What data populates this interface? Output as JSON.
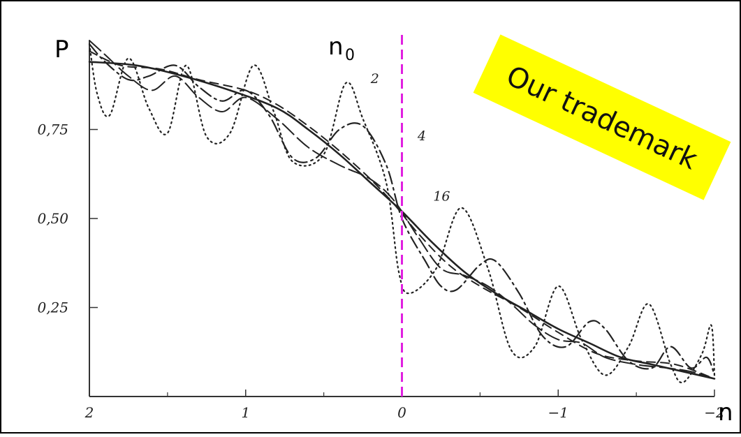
{
  "chart_data": {
    "type": "line",
    "ylabel": "P",
    "xlabel": "n",
    "xlim": [
      2,
      -2
    ],
    "ylim": [
      0,
      1
    ],
    "x_ticks": [
      {
        "value": 2,
        "label": "2"
      },
      {
        "value": 1,
        "label": "1"
      },
      {
        "value": 0,
        "label": "0"
      },
      {
        "value": -1,
        "label": "−1"
      },
      {
        "value": -2,
        "label": "−2"
      }
    ],
    "y_ticks": [
      {
        "value": 0.25,
        "label": "0,25"
      },
      {
        "value": 0.5,
        "label": "0,50"
      },
      {
        "value": 0.75,
        "label": "0,75"
      }
    ],
    "grid": false,
    "series": [
      {
        "name": "2",
        "style": "dotted",
        "points": [
          [
            2.0,
            0.99
          ],
          [
            1.95,
            0.85
          ],
          [
            1.87,
            0.79
          ],
          [
            1.75,
            0.95
          ],
          [
            1.62,
            0.81
          ],
          [
            1.5,
            0.74
          ],
          [
            1.38,
            0.93
          ],
          [
            1.25,
            0.73
          ],
          [
            1.1,
            0.74
          ],
          [
            0.95,
            0.93
          ],
          [
            0.82,
            0.8
          ],
          [
            0.7,
            0.66
          ],
          [
            0.5,
            0.68
          ],
          [
            0.36,
            0.88
          ],
          [
            0.25,
            0.78
          ],
          [
            0.1,
            0.6
          ],
          [
            0.02,
            0.35
          ],
          [
            -0.05,
            0.29
          ],
          [
            -0.22,
            0.36
          ],
          [
            -0.38,
            0.53
          ],
          [
            -0.55,
            0.36
          ],
          [
            -0.7,
            0.13
          ],
          [
            -0.85,
            0.14
          ],
          [
            -1.0,
            0.31
          ],
          [
            -1.15,
            0.16
          ],
          [
            -1.3,
            0.06
          ],
          [
            -1.45,
            0.14
          ],
          [
            -1.58,
            0.26
          ],
          [
            -1.72,
            0.09
          ],
          [
            -1.8,
            0.04
          ],
          [
            -1.92,
            0.12
          ],
          [
            -1.98,
            0.2
          ],
          [
            -2.0,
            0.06
          ]
        ]
      },
      {
        "name": "4",
        "style": "dash-dot",
        "points": [
          [
            2.0,
            0.99
          ],
          [
            1.9,
            0.94
          ],
          [
            1.75,
            0.89
          ],
          [
            1.62,
            0.9
          ],
          [
            1.45,
            0.93
          ],
          [
            1.3,
            0.87
          ],
          [
            1.15,
            0.83
          ],
          [
            1.0,
            0.86
          ],
          [
            0.85,
            0.79
          ],
          [
            0.7,
            0.67
          ],
          [
            0.55,
            0.67
          ],
          [
            0.4,
            0.75
          ],
          [
            0.25,
            0.76
          ],
          [
            0.1,
            0.65
          ],
          [
            0.0,
            0.5
          ],
          [
            -0.15,
            0.38
          ],
          [
            -0.25,
            0.31
          ],
          [
            -0.35,
            0.3
          ],
          [
            -0.5,
            0.37
          ],
          [
            -0.6,
            0.38
          ],
          [
            -0.75,
            0.29
          ],
          [
            -0.9,
            0.17
          ],
          [
            -1.05,
            0.14
          ],
          [
            -1.2,
            0.21
          ],
          [
            -1.3,
            0.19
          ],
          [
            -1.45,
            0.1
          ],
          [
            -1.6,
            0.08
          ],
          [
            -1.72,
            0.14
          ],
          [
            -1.85,
            0.08
          ],
          [
            -1.95,
            0.11
          ],
          [
            -2.0,
            0.06
          ]
        ]
      },
      {
        "name": "16",
        "style": "dashed",
        "points": [
          [
            2.0,
            0.97
          ],
          [
            1.8,
            0.93
          ],
          [
            1.55,
            0.92
          ],
          [
            1.3,
            0.89
          ],
          [
            1.0,
            0.86
          ],
          [
            0.8,
            0.82
          ],
          [
            0.6,
            0.76
          ],
          [
            0.4,
            0.69
          ],
          [
            0.2,
            0.61
          ],
          [
            0.05,
            0.54
          ],
          [
            -0.1,
            0.46
          ],
          [
            -0.3,
            0.37
          ],
          [
            -0.5,
            0.31
          ],
          [
            -0.75,
            0.25
          ],
          [
            -1.0,
            0.18
          ],
          [
            -1.25,
            0.12
          ],
          [
            -1.5,
            0.1
          ],
          [
            -1.75,
            0.09
          ],
          [
            -2.0,
            0.05
          ]
        ]
      },
      {
        "name": "",
        "style": "solid",
        "points": [
          [
            2.0,
            0.94
          ],
          [
            1.7,
            0.93
          ],
          [
            1.4,
            0.9
          ],
          [
            1.1,
            0.86
          ],
          [
            0.8,
            0.81
          ],
          [
            0.6,
            0.75
          ],
          [
            0.4,
            0.68
          ],
          [
            0.2,
            0.6
          ],
          [
            0.0,
            0.52
          ],
          [
            -0.2,
            0.43
          ],
          [
            -0.4,
            0.35
          ],
          [
            -0.6,
            0.29
          ],
          [
            -0.8,
            0.24
          ],
          [
            -1.0,
            0.19
          ],
          [
            -1.2,
            0.15
          ],
          [
            -1.4,
            0.11
          ],
          [
            -1.6,
            0.09
          ],
          [
            -1.8,
            0.07
          ],
          [
            -2.0,
            0.05
          ]
        ]
      },
      {
        "name": "",
        "style": "long-dash",
        "points": [
          [
            2.0,
            1.0
          ],
          [
            1.9,
            0.96
          ],
          [
            1.75,
            0.9
          ],
          [
            1.6,
            0.86
          ],
          [
            1.45,
            0.9
          ],
          [
            1.3,
            0.84
          ],
          [
            1.15,
            0.8
          ],
          [
            1.0,
            0.84
          ],
          [
            0.8,
            0.78
          ],
          [
            0.6,
            0.7
          ],
          [
            0.4,
            0.65
          ],
          [
            0.2,
            0.61
          ],
          [
            0.05,
            0.55
          ],
          [
            -0.1,
            0.45
          ],
          [
            -0.25,
            0.36
          ],
          [
            -0.4,
            0.34
          ],
          [
            -0.55,
            0.31
          ],
          [
            -0.7,
            0.26
          ],
          [
            -0.85,
            0.2
          ],
          [
            -1.0,
            0.16
          ],
          [
            -1.15,
            0.15
          ],
          [
            -1.3,
            0.11
          ],
          [
            -1.5,
            0.09
          ],
          [
            -1.7,
            0.08
          ],
          [
            -1.85,
            0.07
          ],
          [
            -2.0,
            0.05
          ]
        ]
      }
    ],
    "reference_line": {
      "x": 0,
      "label_main": "n",
      "label_sub": "0",
      "color": "#e020e0"
    },
    "annotations": [
      {
        "text": "2",
        "x": 0.2,
        "y": 0.88
      },
      {
        "text": "4",
        "x": -0.1,
        "y": 0.72
      },
      {
        "text": "16",
        "x": -0.2,
        "y": 0.55
      }
    ]
  },
  "stamp": {
    "text": "Our trademark",
    "background": "#ffff00"
  },
  "colors": {
    "curves": "#222222",
    "axis": "#333333",
    "reference": "#e020e0"
  }
}
